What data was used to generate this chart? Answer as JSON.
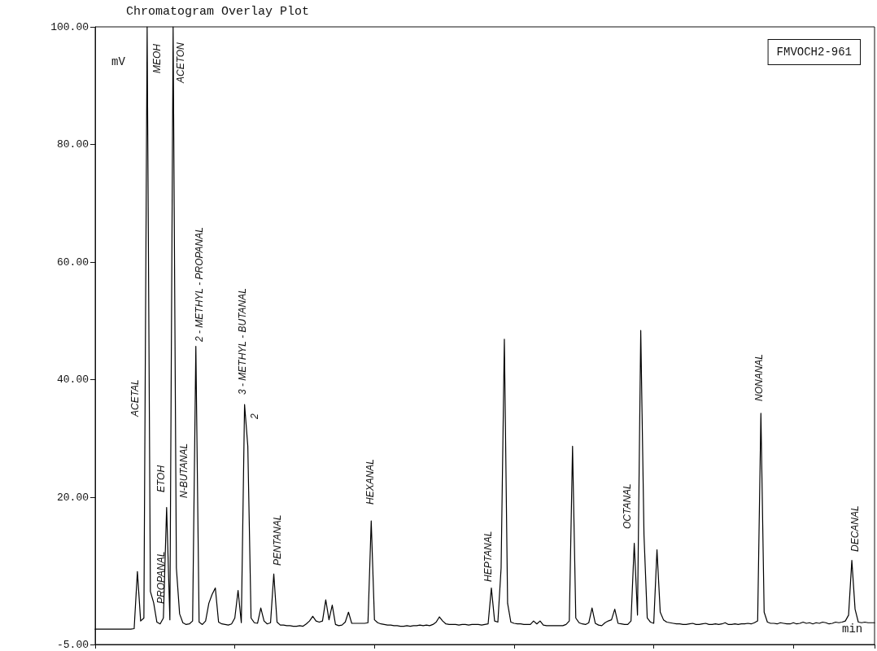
{
  "chart_data": {
    "type": "line",
    "title": "Chromatogram Overlay Plot",
    "xlabel": "min",
    "ylabel": "mV",
    "annotations": [
      "FMVOCH2-961",
      "ACETAL",
      "MEOH",
      "PROPANAL",
      "ETOH",
      "ACETON",
      "N-BUTANAL",
      "2 - METHYL - PROPANAL",
      "3 - METHYL - BUTANAL",
      "2",
      "PENTANAL",
      "HEXANAL",
      "HEPTANAL",
      "OCTANAL",
      "NONANAL",
      "DECANAL"
    ],
    "categories": [
      null,
      null,
      null,
      null,
      null,
      null,
      null,
      null,
      null,
      null,
      null,
      null,
      null,
      null,
      null,
      null,
      null,
      null,
      null,
      null,
      null,
      null,
      null,
      null,
      null,
      null,
      null,
      null,
      null,
      null,
      null,
      null,
      null,
      null,
      null,
      null,
      null,
      null,
      null,
      null,
      null,
      null,
      null,
      null,
      null,
      null,
      null,
      null,
      null,
      null,
      null,
      null,
      null,
      null,
      null,
      null,
      null,
      null,
      null,
      null,
      null,
      null,
      null,
      null,
      null,
      null,
      null,
      null,
      null,
      null,
      null,
      null,
      null,
      null,
      null,
      null,
      null,
      null,
      null,
      null,
      null,
      null,
      null,
      null,
      null,
      null,
      null,
      null,
      null,
      null,
      null,
      null,
      null,
      null,
      null,
      null,
      null,
      null,
      null,
      null,
      null,
      null,
      null,
      null,
      null,
      null,
      null,
      null,
      null,
      null,
      null,
      null,
      null,
      null,
      null,
      null,
      null,
      null,
      null,
      null,
      null,
      null,
      null,
      null,
      null,
      null,
      null,
      null,
      null,
      null,
      null,
      null,
      null,
      null,
      null,
      null,
      null,
      null,
      null,
      null,
      null,
      null,
      null,
      null,
      null,
      null,
      null,
      null,
      null,
      null,
      null,
      null,
      null,
      null,
      null,
      null,
      null,
      null,
      null,
      null,
      null,
      null,
      null,
      null,
      null,
      null,
      null,
      null,
      null,
      null,
      null,
      null,
      null,
      null,
      null,
      null,
      null,
      null,
      null,
      null,
      null,
      null,
      null,
      null,
      null,
      null,
      null,
      null,
      null,
      null,
      null,
      null,
      null,
      null,
      null,
      null,
      null,
      null,
      null,
      null,
      null,
      null,
      null,
      null,
      null,
      null,
      null,
      null,
      null,
      null,
      null,
      null,
      null,
      null,
      null,
      null,
      null,
      null,
      null,
      null,
      null,
      null,
      null,
      null,
      null,
      null,
      null,
      null,
      null,
      null,
      null,
      null,
      null,
      null,
      null,
      null,
      null,
      null,
      null,
      null,
      null
    ],
    "series": [
      {
        "color": "#000000",
        "values": [
          -2.4,
          -2.4,
          -2.4,
          -2.4,
          -2.4,
          -2.4,
          -2.4,
          -2.4,
          -2.4,
          -2.4,
          -2.4,
          -2.4,
          -2.3,
          7.4,
          -1.0,
          -0.5,
          100,
          4,
          2.1,
          -1.2,
          -1.5,
          -0.5,
          18.3,
          -0.8,
          100,
          8,
          0.2,
          -1.3,
          -1.6,
          -1.5,
          -1.0,
          45.7,
          -1.2,
          -1.6,
          -1.0,
          2,
          3.5,
          4.6,
          -1.2,
          -1.5,
          -1.6,
          -1.7,
          -1.5,
          -0.5,
          4.2,
          -1.3,
          35.8,
          28.7,
          -0.5,
          -1.3,
          -1.4,
          1.2,
          -1.0,
          -1.5,
          -1.3,
          7.0,
          -1.2,
          -1.7,
          -1.7,
          -1.8,
          -1.8,
          -1.9,
          -1.9,
          -1.8,
          -1.9,
          -1.5,
          -1.0,
          -0.2,
          -1.0,
          -1.2,
          -1.0,
          2.6,
          -0.8,
          1.7,
          -1.6,
          -1.8,
          -1.7,
          -1.2,
          0.5,
          -1.4,
          -1.4,
          -1.4,
          -1.4,
          -1.4,
          -1.3,
          16.0,
          -0.8,
          -1.3,
          -1.5,
          -1.6,
          -1.7,
          -1.7,
          -1.8,
          -1.8,
          -1.9,
          -1.9,
          -1.8,
          -1.9,
          -1.8,
          -1.8,
          -1.7,
          -1.8,
          -1.7,
          -1.8,
          -1.6,
          -1.2,
          -0.3,
          -1.0,
          -1.5,
          -1.6,
          -1.6,
          -1.6,
          -1.7,
          -1.6,
          -1.6,
          -1.7,
          -1.6,
          -1.6,
          -1.6,
          -1.7,
          -1.6,
          -1.5,
          4.6,
          -1.0,
          -1.2,
          8,
          46.9,
          2,
          -1.2,
          -1.4,
          -1.5,
          -1.5,
          -1.6,
          -1.6,
          -1.6,
          -1.0,
          -1.5,
          -1.0,
          -1.7,
          -1.8,
          -1.8,
          -1.8,
          -1.8,
          -1.8,
          -1.8,
          -1.6,
          -1.0,
          28.7,
          -0.5,
          -1.3,
          -1.5,
          -1.6,
          -1.3,
          1.2,
          -1.4,
          -1.7,
          -1.8,
          -1.3,
          -1.0,
          -0.8,
          1.0,
          -1.4,
          -1.5,
          -1.6,
          -1.6,
          -1.0,
          12.2,
          0.0,
          48.4,
          13.6,
          -0.5,
          -1.2,
          -1.4,
          11.1,
          0.5,
          -0.8,
          -1.2,
          -1.3,
          -1.4,
          -1.5,
          -1.5,
          -1.6,
          -1.6,
          -1.5,
          -1.4,
          -1.6,
          -1.6,
          -1.5,
          -1.4,
          -1.6,
          -1.6,
          -1.5,
          -1.6,
          -1.5,
          -1.3,
          -1.6,
          -1.6,
          -1.5,
          -1.6,
          -1.5,
          -1.5,
          -1.4,
          -1.5,
          -1.3,
          -1.0,
          34.3,
          0.5,
          -1.2,
          -1.4,
          -1.4,
          -1.5,
          -1.3,
          -1.4,
          -1.5,
          -1.5,
          -1.3,
          -1.5,
          -1.4,
          -1.2,
          -1.4,
          -1.3,
          -1.5,
          -1.3,
          -1.4,
          -1.2,
          -1.3,
          -1.5,
          -1.4,
          -1.2,
          -1.3,
          -1.2,
          -1.0,
          0.0,
          9.3,
          1.0,
          -1.2,
          -1.3,
          -1.2,
          -1.3,
          -1.3,
          -1.3
        ]
      }
    ],
    "ylim": [
      -5,
      100
    ],
    "yticks": [
      {
        "value": -5,
        "label": "-5.00"
      },
      {
        "value": 20,
        "label": "20.00"
      },
      {
        "value": 40,
        "label": "40.00"
      },
      {
        "value": 60,
        "label": "60.00"
      },
      {
        "value": 80,
        "label": "80.00"
      },
      {
        "value": 100,
        "label": "100.00"
      }
    ],
    "tick_labels": "y",
    "grid": false
  }
}
